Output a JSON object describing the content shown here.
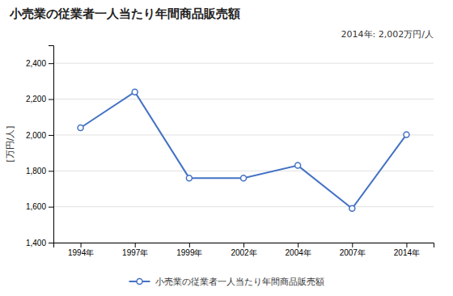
{
  "chart_data": {
    "type": "line",
    "title": "小売業の従業者一人当たり年間商品販売額",
    "y_label": "[万円/人]",
    "annotation": "2014年: 2,002万円/人",
    "categories": [
      "1994年",
      "1997年",
      "1999年",
      "2002年",
      "2004年",
      "2007年",
      "2014年"
    ],
    "series": [
      {
        "name": "小売業の従業者一人当たり年間商品販売額",
        "color": "#4472C4",
        "marker": "o",
        "values": [
          2040,
          2240,
          1760,
          1760,
          1830,
          1590,
          2002
        ]
      }
    ],
    "ylim": [
      1400,
      2500
    ],
    "yticks": [
      {
        "value": 1400,
        "label": "1,400"
      },
      {
        "value": 1600,
        "label": "1,600"
      },
      {
        "value": 1800,
        "label": "1,800"
      },
      {
        "value": 2000,
        "label": "2,000"
      },
      {
        "value": 2200,
        "label": "2,200"
      },
      {
        "value": 2400,
        "label": "2,400"
      }
    ],
    "grid": true,
    "legend": "bottom"
  }
}
